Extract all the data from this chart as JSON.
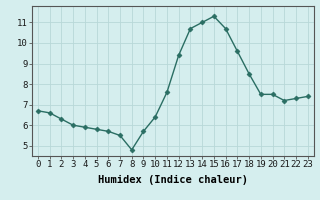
{
  "xlabel": "Humidex (Indice chaleur)",
  "ylabel": "",
  "x": [
    0,
    1,
    2,
    3,
    4,
    5,
    6,
    7,
    8,
    9,
    10,
    11,
    12,
    13,
    14,
    15,
    16,
    17,
    18,
    19,
    20,
    21,
    22,
    23
  ],
  "y": [
    6.7,
    6.6,
    6.3,
    6.0,
    5.9,
    5.8,
    5.7,
    5.5,
    4.8,
    5.7,
    6.4,
    7.6,
    9.4,
    10.7,
    11.0,
    11.3,
    10.7,
    9.6,
    8.5,
    7.5,
    7.5,
    7.2,
    7.3,
    7.4
  ],
  "line_color": "#2a6e63",
  "marker": "D",
  "marker_size": 2.5,
  "bg_color": "#d5eeee",
  "grid_color": "#b8d8d8",
  "ylim": [
    4.5,
    11.8
  ],
  "yticks": [
    5,
    6,
    7,
    8,
    9,
    10,
    11
  ],
  "xlim": [
    -0.5,
    23.5
  ],
  "xticks": [
    0,
    1,
    2,
    3,
    4,
    5,
    6,
    7,
    8,
    9,
    10,
    11,
    12,
    13,
    14,
    15,
    16,
    17,
    18,
    19,
    20,
    21,
    22,
    23
  ],
  "tick_label_fontsize": 6.5,
  "xlabel_fontsize": 7.5,
  "linewidth": 1.0
}
